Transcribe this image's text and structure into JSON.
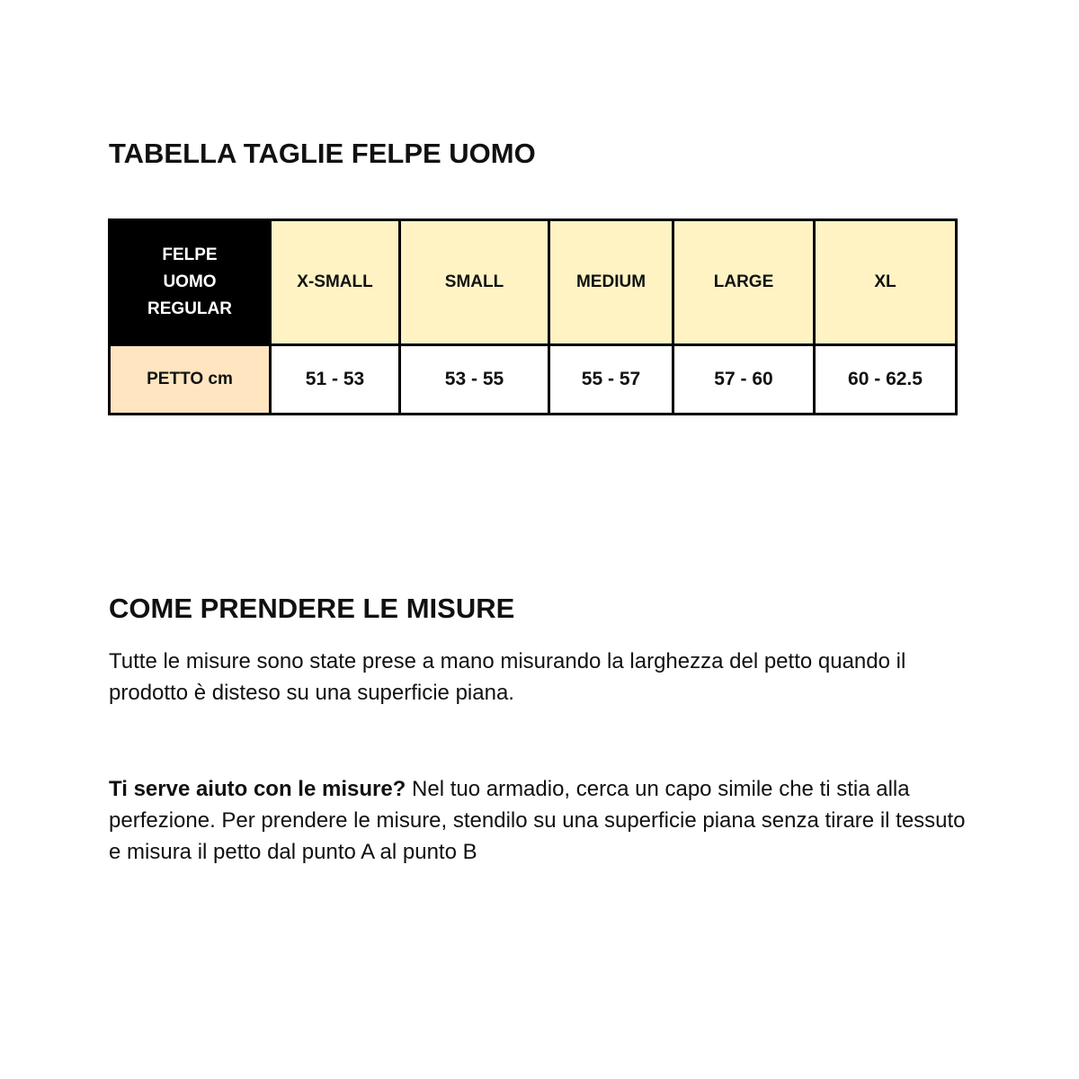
{
  "title": "TABELLA TAGLIE FELPE UOMO",
  "table": {
    "corner": [
      "FELPE",
      "UOMO",
      "REGULAR"
    ],
    "sizes": [
      "X-SMALL",
      "SMALL",
      "MEDIUM",
      "LARGE",
      "XL"
    ],
    "row_label": "PETTO cm",
    "values": [
      "51 - 53",
      "53 - 55",
      "55 - 57",
      "57 - 60",
      "60 - 62.5"
    ],
    "colors": {
      "header": "#fff3c4",
      "row_label": "#ffe5c0",
      "corner": "#000000"
    }
  },
  "section_title": "COME PRENDERE LE MISURE",
  "paragraph1": "Tutte le misure sono state prese a mano misurando la larghezza del petto quando il prodotto è disteso su una superficie piana.",
  "paragraph2_bold": "Ti serve aiuto con le misure?",
  "paragraph2_rest": " Nel tuo armadio, cerca un capo simile che ti stia alla perfezione. Per prendere le misure, stendilo su una superficie piana senza tirare il tessuto e misura il petto dal punto A al punto B"
}
